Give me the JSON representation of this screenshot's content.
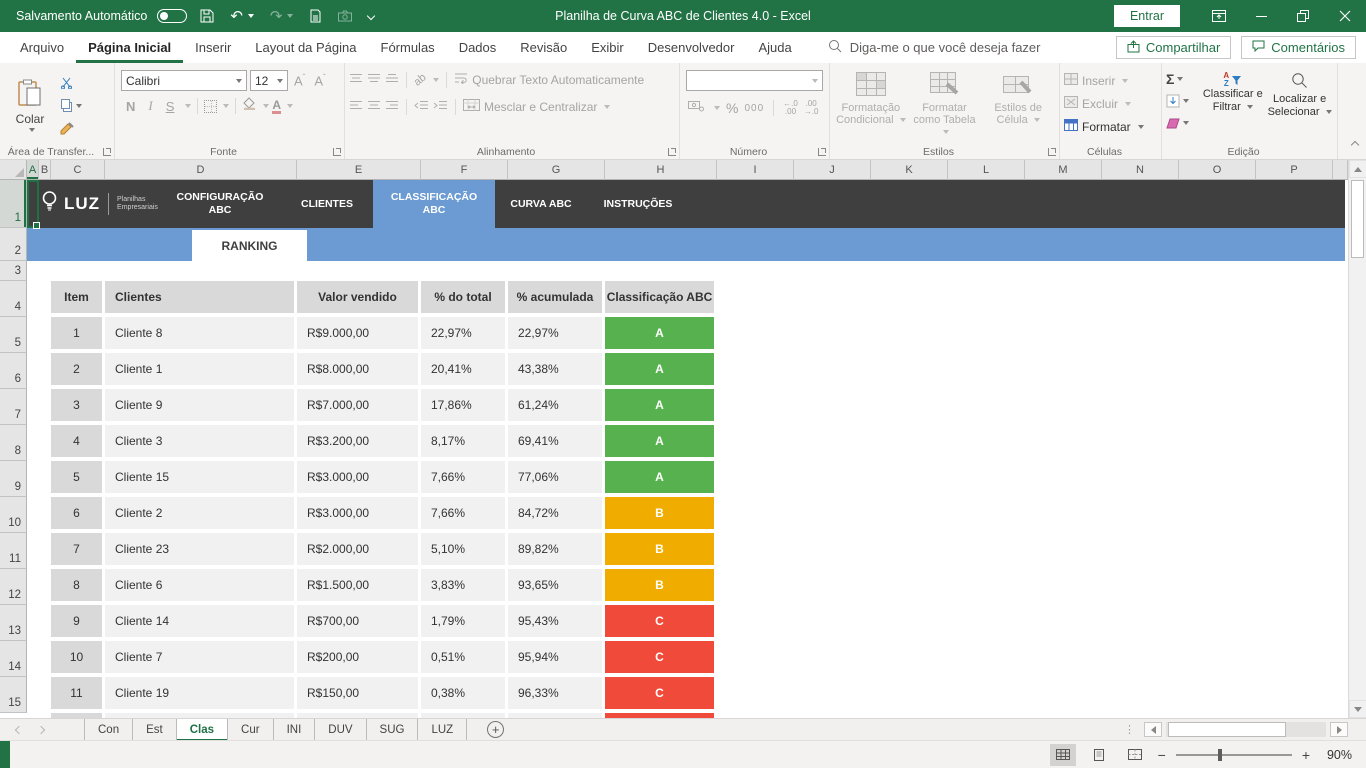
{
  "colors": {
    "excel_green": "#217346",
    "dark_bar": "#3f3f3f",
    "blue_accent": "#6b9bd2",
    "class_a": "#56b14e",
    "class_b": "#f0ad00",
    "class_c": "#f04a3a"
  },
  "titlebar": {
    "autosave": "Salvamento Automático",
    "title": "Planilha de Curva ABC de Clientes 4.0  -  Excel",
    "signin": "Entrar"
  },
  "menu": {
    "tabs": [
      "Arquivo",
      "Página Inicial",
      "Inserir",
      "Layout da Página",
      "Fórmulas",
      "Dados",
      "Revisão",
      "Exibir",
      "Desenvolvedor",
      "Ajuda"
    ],
    "active_tab": "Página Inicial",
    "search": "Diga-me o que você deseja fazer",
    "share": "Compartilhar",
    "comments": "Comentários"
  },
  "ribbon": {
    "paste": "Colar",
    "clipboard_group": "Área de Transfer...",
    "font_name": "Calibri",
    "font_size": "12",
    "bold": "N",
    "italic": "I",
    "underline": "S",
    "font_group": "Fonte",
    "wrap_text": "Quebrar Texto Automaticamente",
    "merge_center": "Mesclar e Centralizar",
    "alignment_group": "Alinhamento",
    "number_group": "Número",
    "cond_format": "Formatação Condicional",
    "format_table": "Formatar como Tabela",
    "cell_styles": "Estilos de Célula",
    "styles_group": "Estilos",
    "insert": "Inserir",
    "delete": "Excluir",
    "format": "Formatar",
    "cells_group": "Células",
    "sort_filter": "Classificar e Filtrar",
    "find_select": "Localizar e Selecionar",
    "editing_group": "Edição"
  },
  "grid": {
    "columns": [
      "A",
      "B",
      "C",
      "D",
      "E",
      "F",
      "G",
      "H",
      "I",
      "J",
      "K",
      "L",
      "M",
      "N",
      "O",
      "P"
    ],
    "rows": [
      "1",
      "2",
      "3",
      "4",
      "5",
      "6",
      "7",
      "8",
      "9",
      "10",
      "11",
      "12",
      "13",
      "14",
      "15"
    ]
  },
  "sheet": {
    "brand": "LUZ",
    "brand_sub1": "Planilhas",
    "brand_sub2": "Empresariais",
    "nav": [
      {
        "label": "CONFIGURAÇÃO ABC",
        "active": false
      },
      {
        "label": "CLIENTES",
        "active": false
      },
      {
        "label": "CLASSIFICAÇÃO ABC",
        "active": true
      },
      {
        "label": "CURVA ABC",
        "active": false
      },
      {
        "label": "INSTRUÇÕES",
        "active": false
      }
    ],
    "ranking": "RANKING"
  },
  "table": {
    "headers": [
      "Item",
      "Clientes",
      "Valor vendido",
      "% do total",
      "% acumulada",
      "Classificação ABC"
    ],
    "rows": [
      {
        "item": "1",
        "cliente": "Cliente 8",
        "valor": "R$9.000,00",
        "pct_total": "22,97%",
        "pct_acum": "22,97%",
        "classe": "A"
      },
      {
        "item": "2",
        "cliente": "Cliente 1",
        "valor": "R$8.000,00",
        "pct_total": "20,41%",
        "pct_acum": "43,38%",
        "classe": "A"
      },
      {
        "item": "3",
        "cliente": "Cliente 9",
        "valor": "R$7.000,00",
        "pct_total": "17,86%",
        "pct_acum": "61,24%",
        "classe": "A"
      },
      {
        "item": "4",
        "cliente": "Cliente 3",
        "valor": "R$3.200,00",
        "pct_total": "8,17%",
        "pct_acum": "69,41%",
        "classe": "A"
      },
      {
        "item": "5",
        "cliente": "Cliente 15",
        "valor": "R$3.000,00",
        "pct_total": "7,66%",
        "pct_acum": "77,06%",
        "classe": "A"
      },
      {
        "item": "6",
        "cliente": "Cliente 2",
        "valor": "R$3.000,00",
        "pct_total": "7,66%",
        "pct_acum": "84,72%",
        "classe": "B"
      },
      {
        "item": "7",
        "cliente": "Cliente 23",
        "valor": "R$2.000,00",
        "pct_total": "5,10%",
        "pct_acum": "89,82%",
        "classe": "B"
      },
      {
        "item": "8",
        "cliente": "Cliente 6",
        "valor": "R$1.500,00",
        "pct_total": "3,83%",
        "pct_acum": "93,65%",
        "classe": "B"
      },
      {
        "item": "9",
        "cliente": "Cliente 14",
        "valor": "R$700,00",
        "pct_total": "1,79%",
        "pct_acum": "95,43%",
        "classe": "C"
      },
      {
        "item": "10",
        "cliente": "Cliente 7",
        "valor": "R$200,00",
        "pct_total": "0,51%",
        "pct_acum": "95,94%",
        "classe": "C"
      },
      {
        "item": "11",
        "cliente": "Cliente 19",
        "valor": "R$150,00",
        "pct_total": "0,38%",
        "pct_acum": "96,33%",
        "classe": "C"
      }
    ],
    "partial_next_row_class": "C"
  },
  "sheet_tabs": {
    "tabs": [
      "Con",
      "Est",
      "Clas",
      "Cur",
      "INI",
      "DUV",
      "SUG",
      "LUZ"
    ],
    "active": "Clas"
  },
  "statusbar": {
    "zoom_level": "90%"
  }
}
